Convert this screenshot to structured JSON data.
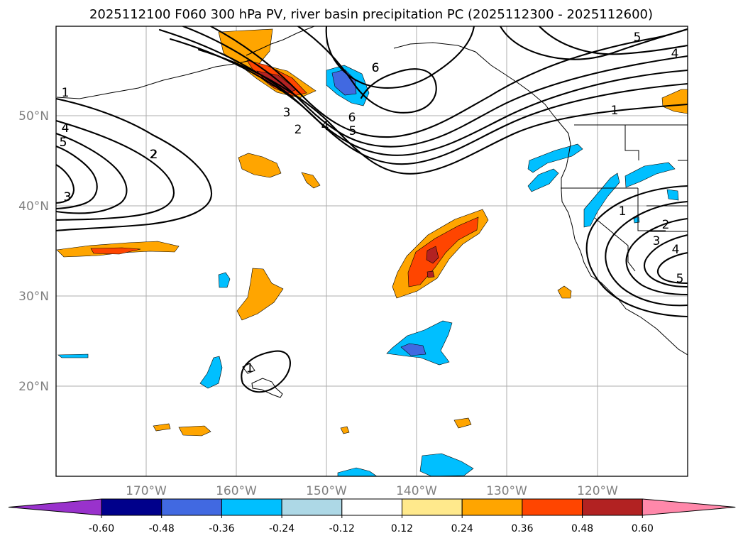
{
  "title": "2025112100 F060 300 hPa PV, river basin precipitation PC (2025112300 - 2025112600)",
  "map": {
    "lon_labels": [
      "170°W",
      "160°W",
      "150°W",
      "140°W",
      "130°W",
      "120°W"
    ],
    "lat_labels": [
      "50°N",
      "40°N",
      "30°N",
      "20°N"
    ],
    "contour_labels": [
      "1",
      "2",
      "3",
      "4",
      "5",
      "6",
      "1",
      "2",
      "3",
      "4",
      "5",
      "6",
      "4",
      "5",
      "5",
      "6",
      "4",
      "3",
      "2",
      "1",
      "2",
      "3",
      "4",
      "5",
      "1"
    ],
    "colors": {
      "orange": "#ffa500",
      "orange_red": "#ff4500",
      "dark_red": "#b22222",
      "deep_sky_blue": "#00bfff",
      "royal_blue": "#4169e1",
      "light_blue": "#add8e6"
    }
  },
  "colorbar": {
    "labels": [
      "-0.60",
      "-0.48",
      "-0.36",
      "-0.24",
      "-0.12",
      "0.12",
      "0.24",
      "0.36",
      "0.48",
      "0.60"
    ],
    "colors": [
      "#9932cc",
      "#00008b",
      "#4169e1",
      "#00bfff",
      "#add8e6",
      "#ffffff",
      "#ffe98c",
      "#ffa500",
      "#ff4500",
      "#b22222",
      "#ff88aa"
    ]
  }
}
